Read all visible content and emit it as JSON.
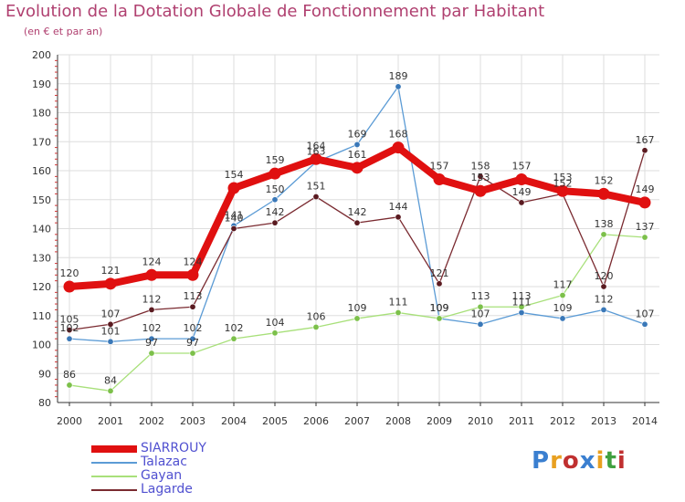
{
  "title": "Evolution de la Dotation Globale de Fonctionnement par Habitant",
  "subtitle": "(en € et par an)",
  "logo": {
    "text": "Proxiti",
    "colors": [
      "#3a7fd0",
      "#e8a020",
      "#c03030",
      "#3a7fd0",
      "#e8a020",
      "#40a040",
      "#c03030"
    ]
  },
  "chart_data": {
    "type": "line",
    "title": "Evolution de la Dotation Globale de Fonctionnement par Habitant",
    "subtitle": "(en € et par an)",
    "xlabel": "",
    "ylabel": "",
    "ylim": [
      80,
      200
    ],
    "yticks": [
      80,
      90,
      100,
      110,
      120,
      130,
      140,
      150,
      160,
      170,
      180,
      190,
      200
    ],
    "grid": true,
    "legend_position": "bottom-left",
    "categories": [
      "2000",
      "2001",
      "2002",
      "2003",
      "2004",
      "2005",
      "2006",
      "2007",
      "2008",
      "2009",
      "2010",
      "2011",
      "2012",
      "2013",
      "2014"
    ],
    "series": [
      {
        "name": "Talazac",
        "color": "#5b9bd5",
        "marker": "#3a78b8",
        "values": [
          102,
          101,
          102,
          102,
          141,
          150,
          163,
          169,
          189,
          109,
          107,
          111,
          109,
          112,
          107
        ]
      },
      {
        "name": "Gayan",
        "color": "#a8e07a",
        "marker": "#7cc04a",
        "values": [
          86,
          84,
          97,
          97,
          102,
          104,
          106,
          109,
          111,
          109,
          113,
          113,
          117,
          138,
          137
        ]
      },
      {
        "name": "Lagarde",
        "color": "#7a2a30",
        "marker": "#5a1a20",
        "values": [
          105,
          107,
          112,
          113,
          140,
          142,
          151,
          142,
          144,
          121,
          158,
          149,
          152,
          120,
          167
        ]
      },
      {
        "name": "SIARROUY",
        "color": "#e01010",
        "marker": "#e01010",
        "values": [
          120,
          121,
          124,
          124,
          154,
          159,
          164,
          161,
          168,
          157,
          153,
          157,
          153,
          152,
          149
        ]
      }
    ],
    "legend": [
      {
        "name": "SIARROUY",
        "color": "#e01010"
      },
      {
        "name": "Talazac",
        "color": "#5b9bd5"
      },
      {
        "name": "Gayan",
        "color": "#a8e07a"
      },
      {
        "name": "Lagarde",
        "color": "#7a2a30"
      }
    ],
    "label_colors": {
      "SIARROUY": "#5050d0",
      "Talazac": "#5050d0",
      "Gayan": "#5050d0",
      "Lagarde": "#5050d0"
    }
  }
}
